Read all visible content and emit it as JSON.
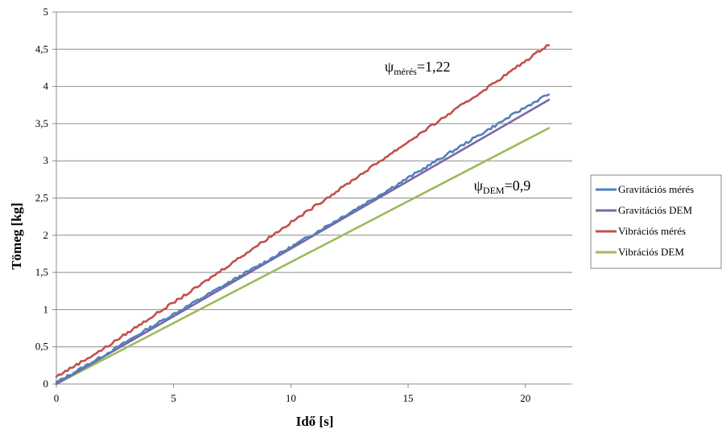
{
  "chart_data": {
    "type": "line",
    "title": "",
    "xlabel": "Idő [s]",
    "ylabel": "Tömeg [kg]",
    "xlim": [
      0,
      22
    ],
    "ylim": [
      0,
      5
    ],
    "xticks": [
      0,
      5,
      10,
      15,
      20
    ],
    "xtick_labels": [
      "0",
      "5",
      "10",
      "15",
      "20"
    ],
    "yticks": [
      0,
      0.5,
      1,
      1.5,
      2,
      2.5,
      3,
      3.5,
      4,
      4.5,
      5
    ],
    "ytick_labels": [
      "0",
      "0,5",
      "1",
      "1,5",
      "2",
      "2,5",
      "3",
      "3,5",
      "4",
      "4,5",
      "5"
    ],
    "grid": "horizontal",
    "legend_position": "right",
    "series": [
      {
        "name": "Gravitációs mérés",
        "color": "#4f81bd",
        "noisy": true,
        "x": [
          0,
          2,
          4,
          6,
          8,
          10,
          12,
          14,
          16,
          18,
          20,
          21
        ],
        "y": [
          0.02,
          0.38,
          0.76,
          1.12,
          1.48,
          1.84,
          2.21,
          2.58,
          2.96,
          3.34,
          3.72,
          3.9
        ]
      },
      {
        "name": "Gravitációs DEM",
        "color": "#8064a2",
        "noisy": false,
        "x": [
          0,
          21
        ],
        "y": [
          0.0,
          3.82
        ]
      },
      {
        "name": "Vibrációs mérés",
        "color": "#c0504d",
        "noisy": true,
        "x": [
          0,
          2,
          4,
          6,
          8,
          10,
          12,
          14,
          16,
          18,
          20,
          21
        ],
        "y": [
          0.1,
          0.47,
          0.89,
          1.3,
          1.74,
          2.17,
          2.6,
          3.04,
          3.47,
          3.9,
          4.34,
          4.57
        ]
      },
      {
        "name": "Vibrációs DEM",
        "color": "#9bbb59",
        "noisy": false,
        "x": [
          0,
          21
        ],
        "y": [
          0.0,
          3.44
        ]
      }
    ],
    "annotations": [
      {
        "symbol": "ψ",
        "subscript": "mérés",
        "value": "=1,22",
        "x": 14.0,
        "y": 4.2
      },
      {
        "symbol": "ψ",
        "subscript": "DEM",
        "value": "=0,9",
        "x": 17.8,
        "y": 2.6
      }
    ]
  }
}
